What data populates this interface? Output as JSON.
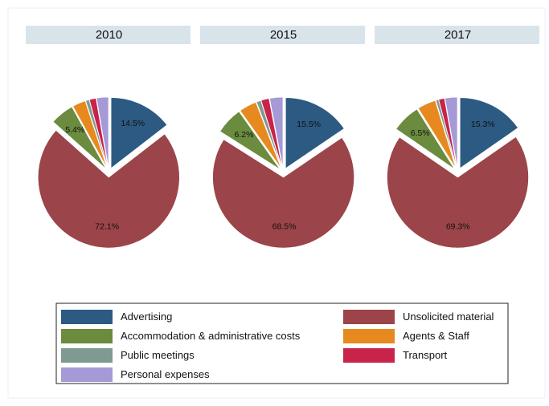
{
  "chart_data": [
    {
      "type": "pie",
      "title": "2010",
      "categories": [
        "Advertising",
        "Unsolicited material",
        "Accommodation & administrative costs",
        "Agents & Staff",
        "Public meetings",
        "Transport",
        "Personal expenses"
      ],
      "values": [
        14.5,
        72.1,
        5.4,
        3.0,
        0.8,
        1.5,
        2.7
      ],
      "value_labels": [
        "14.5%",
        "72.1%",
        "5.4%",
        null,
        null,
        null,
        null
      ],
      "colors": [
        "#2c5a82",
        "#9b4449",
        "#6b8b3e",
        "#e68a20",
        "#7f9a90",
        "#c8234a",
        "#a59ad6"
      ]
    },
    {
      "type": "pie",
      "title": "2015",
      "categories": [
        "Advertising",
        "Unsolicited material",
        "Accommodation & administrative costs",
        "Agents & Staff",
        "Public meetings",
        "Transport",
        "Personal expenses"
      ],
      "values": [
        15.5,
        68.5,
        6.2,
        4.0,
        1.0,
        1.8,
        3.0
      ],
      "value_labels": [
        "15.5%",
        "68.5%",
        "6.2%",
        null,
        null,
        null,
        null
      ],
      "colors": [
        "#2c5a82",
        "#9b4449",
        "#6b8b3e",
        "#e68a20",
        "#7f9a90",
        "#c8234a",
        "#a59ad6"
      ]
    },
    {
      "type": "pie",
      "title": "2017",
      "categories": [
        "Advertising",
        "Unsolicited material",
        "Accommodation & administrative costs",
        "Agents & Staff",
        "Public meetings",
        "Transport",
        "Personal expenses"
      ],
      "values": [
        15.3,
        69.3,
        6.5,
        4.2,
        0.6,
        1.3,
        2.8
      ],
      "value_labels": [
        "15.3%",
        "69.3%",
        "6.5%",
        null,
        null,
        null,
        null
      ],
      "colors": [
        "#2c5a82",
        "#9b4449",
        "#6b8b3e",
        "#e68a20",
        "#7f9a90",
        "#c8234a",
        "#a59ad6"
      ]
    }
  ]
}
